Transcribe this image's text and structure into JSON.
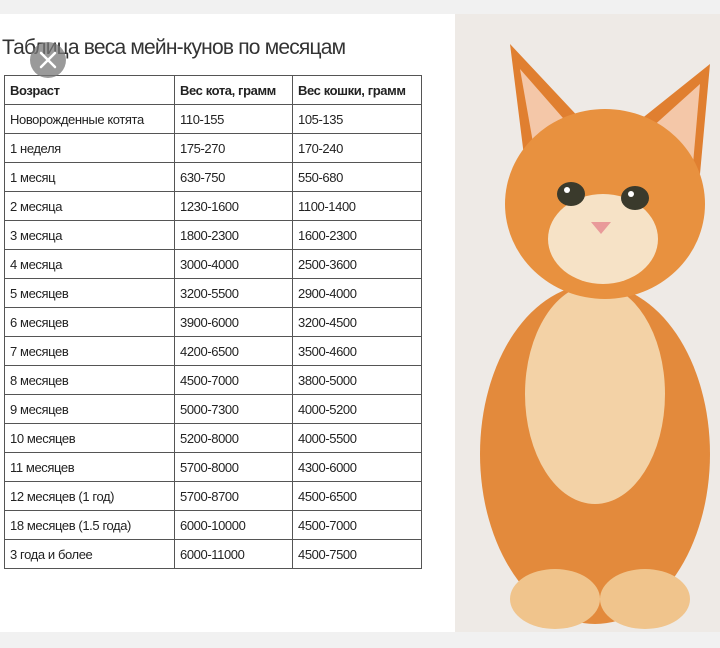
{
  "header": {
    "title": "Таблица веса мейн-кунов по месяцам"
  },
  "table": {
    "columns": [
      "Возраст",
      "Вес кота, грамм",
      "Вес кошки, грамм"
    ],
    "rows": [
      [
        "Новорожденные котята",
        "110-155",
        "105-135"
      ],
      [
        "1 неделя",
        "175-270",
        "170-240"
      ],
      [
        "1 месяц",
        "630-750",
        "550-680"
      ],
      [
        "2 месяца",
        "1230-1600",
        "1100-1400"
      ],
      [
        "3 месяца",
        "1800-2300",
        "1600-2300"
      ],
      [
        "4 месяца",
        "3000-4000",
        "2500-3600"
      ],
      [
        "5 месяцев",
        "3200-5500",
        "2900-4000"
      ],
      [
        "6 месяцев",
        "3900-6000",
        "3200-4500"
      ],
      [
        "7 месяцев",
        "4200-6500",
        "3500-4600"
      ],
      [
        "8 месяцев",
        "4500-7000",
        "3800-5000"
      ],
      [
        "9 месяцев",
        "5000-7300",
        "4000-5200"
      ],
      [
        "10 месяцев",
        "5200-8000",
        "4000-5500"
      ],
      [
        "11 месяцев",
        "5700-8000",
        "4300-6000"
      ],
      [
        "12 месяцев (1 год)",
        "5700-8700",
        "4500-6500"
      ],
      [
        "18 месяцев (1.5 года)",
        "6000-10000",
        "4500-7000"
      ],
      [
        "3 года и более",
        "6000-11000",
        "4500-7500"
      ]
    ]
  }
}
